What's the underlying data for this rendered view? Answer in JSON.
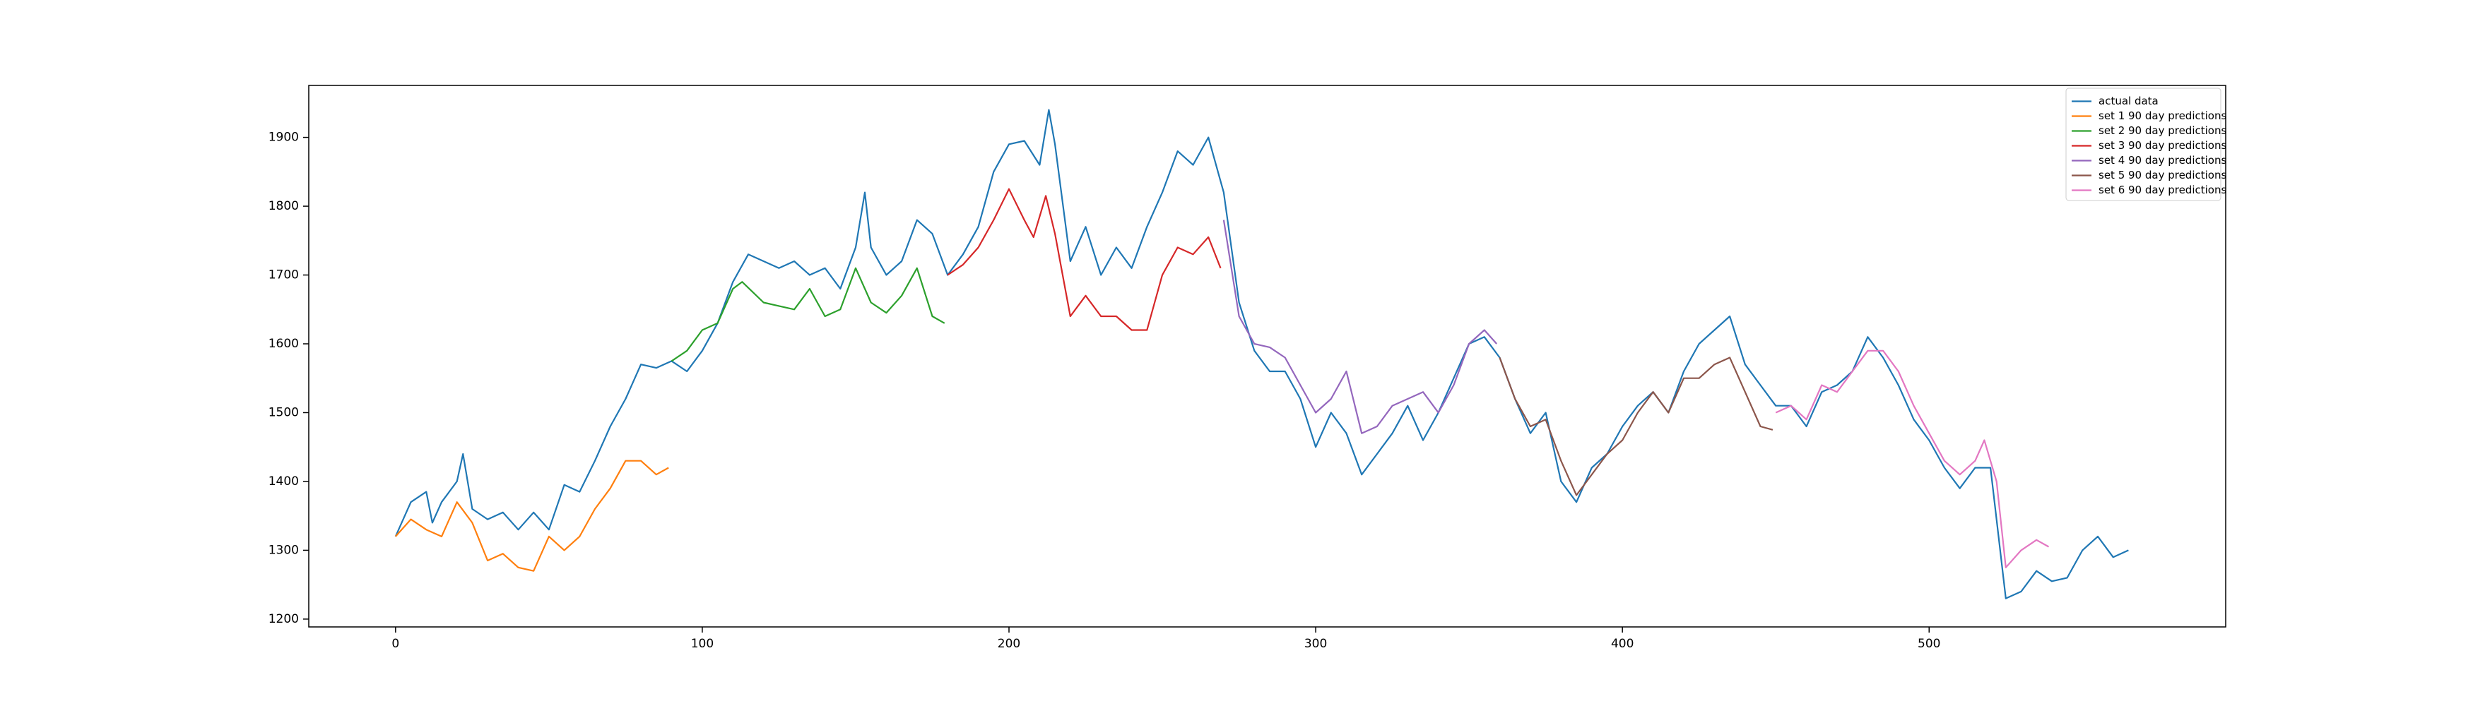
{
  "chart_data": {
    "type": "line",
    "xlim": [
      -28.3,
      596.7
    ],
    "ylim": [
      1188.6,
      1975.5
    ],
    "xticks": [
      0,
      100,
      200,
      300,
      400,
      500
    ],
    "yticks": [
      1200,
      1300,
      1400,
      1500,
      1600,
      1700,
      1800,
      1900
    ],
    "grid": false,
    "legend": "upper right",
    "series": [
      {
        "name": "actual data",
        "color": "#1f77b4",
        "x": [
          0,
          5,
          10,
          12,
          15,
          20,
          22,
          25,
          30,
          35,
          40,
          45,
          50,
          55,
          60,
          65,
          70,
          75,
          80,
          85,
          90,
          95,
          100,
          105,
          110,
          115,
          120,
          125,
          130,
          135,
          140,
          145,
          150,
          153,
          155,
          160,
          165,
          170,
          175,
          180,
          185,
          190,
          195,
          200,
          205,
          210,
          213,
          215,
          220,
          225,
          230,
          235,
          240,
          245,
          250,
          255,
          260,
          265,
          270,
          275,
          280,
          285,
          290,
          295,
          300,
          305,
          310,
          315,
          320,
          325,
          330,
          335,
          340,
          345,
          350,
          355,
          360,
          365,
          370,
          375,
          380,
          385,
          390,
          395,
          400,
          405,
          410,
          415,
          420,
          425,
          430,
          435,
          440,
          445,
          450,
          455,
          460,
          465,
          470,
          475,
          480,
          485,
          490,
          495,
          500,
          505,
          510,
          515,
          520,
          525,
          530,
          535,
          540,
          545,
          550,
          555,
          560,
          565
        ],
        "values": [
          1320,
          1370,
          1385,
          1340,
          1370,
          1400,
          1440,
          1360,
          1345,
          1355,
          1330,
          1355,
          1330,
          1395,
          1385,
          1430,
          1480,
          1520,
          1570,
          1565,
          1575,
          1560,
          1590,
          1630,
          1690,
          1730,
          1720,
          1710,
          1720,
          1700,
          1710,
          1680,
          1740,
          1820,
          1740,
          1700,
          1720,
          1780,
          1760,
          1700,
          1730,
          1770,
          1850,
          1890,
          1895,
          1860,
          1940,
          1890,
          1720,
          1770,
          1700,
          1740,
          1710,
          1770,
          1820,
          1880,
          1860,
          1900,
          1820,
          1660,
          1590,
          1560,
          1560,
          1520,
          1450,
          1500,
          1470,
          1410,
          1440,
          1470,
          1510,
          1460,
          1500,
          1550,
          1600,
          1610,
          1580,
          1520,
          1470,
          1500,
          1400,
          1370,
          1420,
          1440,
          1480,
          1510,
          1530,
          1500,
          1560,
          1600,
          1620,
          1640,
          1570,
          1540,
          1510,
          1510,
          1480,
          1530,
          1540,
          1560,
          1610,
          1580,
          1540,
          1490,
          1460,
          1420,
          1390,
          1420,
          1420,
          1230,
          1240,
          1270,
          1255,
          1260,
          1300,
          1320,
          1290,
          1300
        ]
      },
      {
        "name": "set 1 90 day predictions",
        "color": "#ff7f0e",
        "x": [
          0,
          5,
          10,
          15,
          20,
          25,
          30,
          35,
          40,
          45,
          50,
          55,
          60,
          65,
          70,
          75,
          80,
          85,
          89
        ],
        "values": [
          1320,
          1345,
          1330,
          1320,
          1370,
          1340,
          1285,
          1295,
          1275,
          1270,
          1320,
          1300,
          1320,
          1360,
          1390,
          1430,
          1430,
          1410,
          1420
        ]
      },
      {
        "name": "set 2 90 day predictions",
        "color": "#2ca02c",
        "x": [
          90,
          95,
          100,
          105,
          110,
          113,
          120,
          125,
          130,
          135,
          140,
          145,
          150,
          155,
          160,
          165,
          170,
          175,
          179
        ],
        "values": [
          1575,
          1590,
          1620,
          1630,
          1680,
          1690,
          1660,
          1655,
          1650,
          1680,
          1640,
          1650,
          1710,
          1660,
          1645,
          1670,
          1710,
          1640,
          1630
        ]
      },
      {
        "name": "set 3 90 day predictions",
        "color": "#d62728",
        "x": [
          180,
          185,
          190,
          195,
          200,
          205,
          208,
          212,
          215,
          220,
          225,
          230,
          235,
          240,
          245,
          250,
          255,
          260,
          265,
          269
        ],
        "values": [
          1700,
          1715,
          1740,
          1780,
          1825,
          1780,
          1755,
          1815,
          1760,
          1640,
          1670,
          1640,
          1640,
          1620,
          1620,
          1700,
          1740,
          1730,
          1755,
          1710
        ]
      },
      {
        "name": "set 4 90 day predictions",
        "color": "#9467bd",
        "x": [
          270,
          275,
          280,
          285,
          290,
          295,
          300,
          305,
          310,
          315,
          320,
          325,
          330,
          335,
          340,
          345,
          350,
          355,
          359
        ],
        "values": [
          1780,
          1640,
          1600,
          1595,
          1580,
          1540,
          1500,
          1520,
          1560,
          1470,
          1480,
          1510,
          1520,
          1530,
          1500,
          1540,
          1600,
          1620,
          1600
        ]
      },
      {
        "name": "set 5 90 day predictions",
        "color": "#8c564b",
        "x": [
          360,
          365,
          370,
          375,
          380,
          385,
          390,
          395,
          400,
          405,
          410,
          415,
          420,
          425,
          430,
          435,
          440,
          445,
          449
        ],
        "values": [
          1580,
          1520,
          1480,
          1490,
          1430,
          1380,
          1410,
          1440,
          1460,
          1500,
          1530,
          1500,
          1550,
          1550,
          1570,
          1580,
          1530,
          1480,
          1475
        ]
      },
      {
        "name": "set 6 90 day predictions",
        "color": "#e377c2",
        "x": [
          450,
          455,
          460,
          465,
          470,
          475,
          480,
          485,
          490,
          495,
          500,
          505,
          510,
          515,
          518,
          522,
          525,
          530,
          535,
          539
        ],
        "values": [
          1500,
          1510,
          1490,
          1540,
          1530,
          1560,
          1590,
          1590,
          1560,
          1510,
          1470,
          1430,
          1410,
          1430,
          1460,
          1400,
          1275,
          1300,
          1315,
          1305
        ]
      }
    ]
  }
}
